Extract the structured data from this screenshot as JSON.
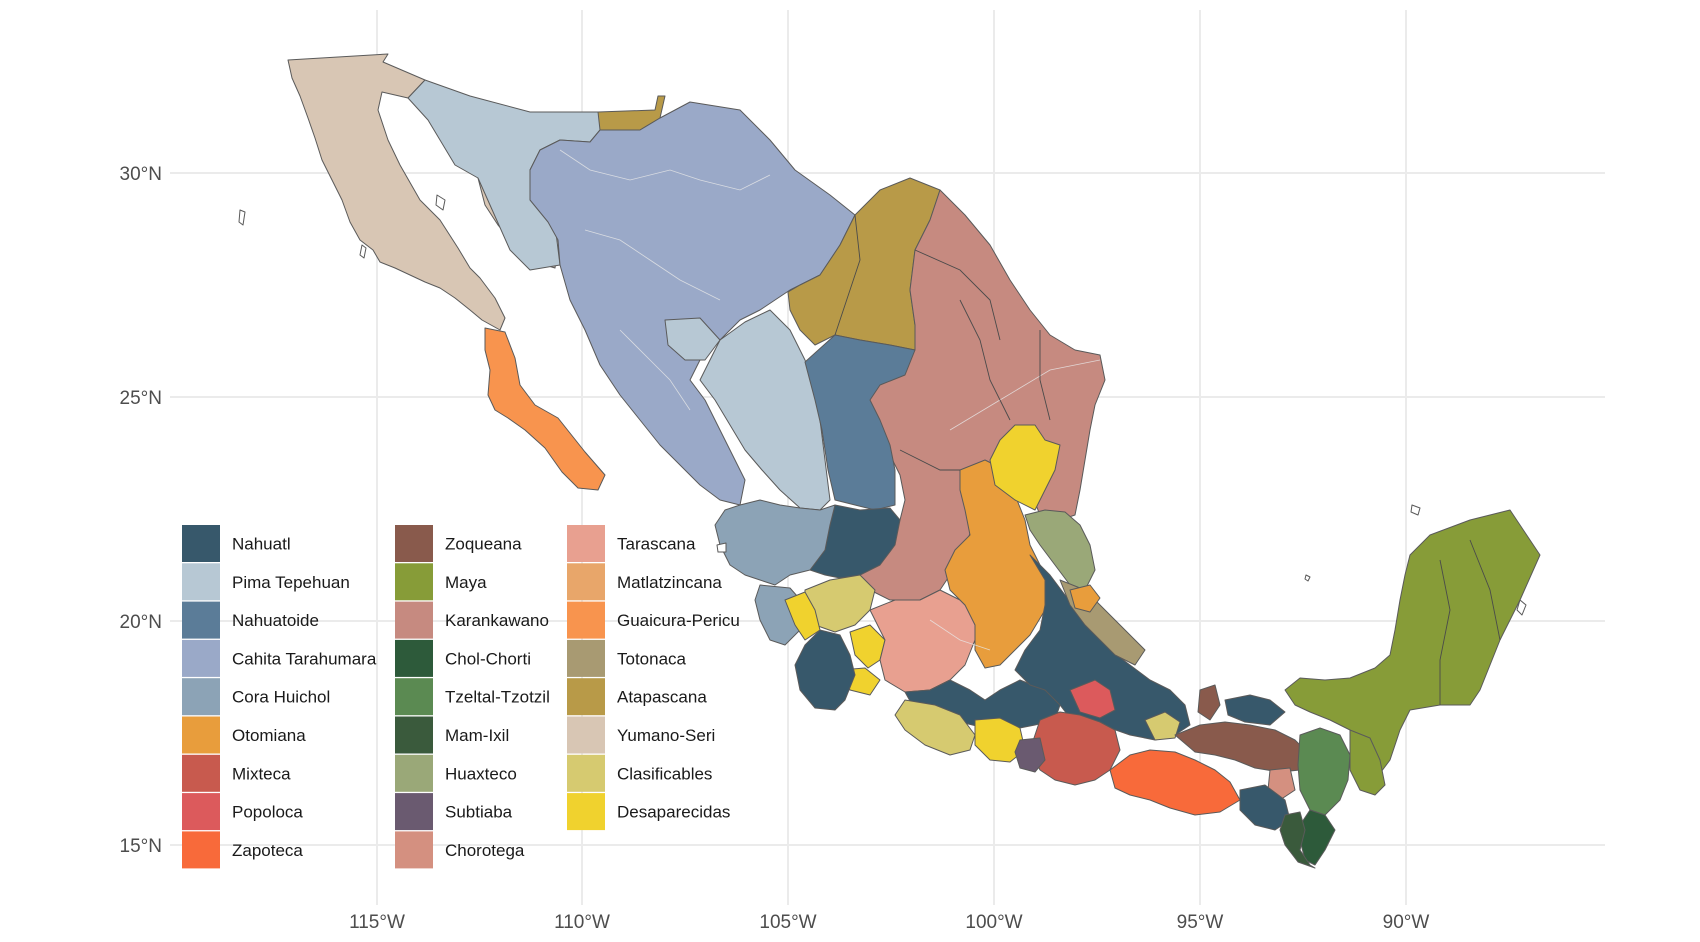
{
  "axes": {
    "lon_ticks": [
      "115°W",
      "110°W",
      "105°W",
      "100°W",
      "95°W",
      "90°W"
    ],
    "lat_ticks": [
      "30°N",
      "25°N",
      "20°N",
      "15°N"
    ]
  },
  "legend": {
    "items": [
      {
        "label": "Nahuatl",
        "color": "#37586b"
      },
      {
        "label": "Pima Tepehuan",
        "color": "#b7c8d4"
      },
      {
        "label": "Nahuatoide",
        "color": "#5b7c98"
      },
      {
        "label": "Cahita Tarahumara",
        "color": "#9aa9c8"
      },
      {
        "label": "Cora Huichol",
        "color": "#8ca3b6"
      },
      {
        "label": "Otomiana",
        "color": "#e89d3c"
      },
      {
        "label": "Mixteca",
        "color": "#c85a4e"
      },
      {
        "label": "Popoloca",
        "color": "#dc5a5c"
      },
      {
        "label": "Zapoteca",
        "color": "#f86a3a"
      },
      {
        "label": "Zoqueana",
        "color": "#895a4c"
      },
      {
        "label": "Maya",
        "color": "#879c38"
      },
      {
        "label": "Karankawano",
        "color": "#c68a80"
      },
      {
        "label": "Chol-Chorti",
        "color": "#2d5a3a"
      },
      {
        "label": "Tzeltal-Tzotzil",
        "color": "#5b8a52"
      },
      {
        "label": "Mam-Ixil",
        "color": "#3a5a3c"
      },
      {
        "label": "Huaxteco",
        "color": "#9aa878"
      },
      {
        "label": "Subtiaba",
        "color": "#6a5a70"
      },
      {
        "label": "Chorotega",
        "color": "#d49080"
      },
      {
        "label": "Tarascana",
        "color": "#e8a090"
      },
      {
        "label": "Matlatzincana",
        "color": "#e8a66a"
      },
      {
        "label": "Guaicura-Pericu",
        "color": "#f8944e"
      },
      {
        "label": "Totonaca",
        "color": "#a89a72"
      },
      {
        "label": "Atapascana",
        "color": "#b89a48"
      },
      {
        "label": "Yumano-Seri",
        "color": "#d8c6b4"
      },
      {
        "label": "Clasificables",
        "color": "#d6ca70"
      },
      {
        "label": "Desaparecidas",
        "color": "#f0d22e"
      }
    ]
  }
}
